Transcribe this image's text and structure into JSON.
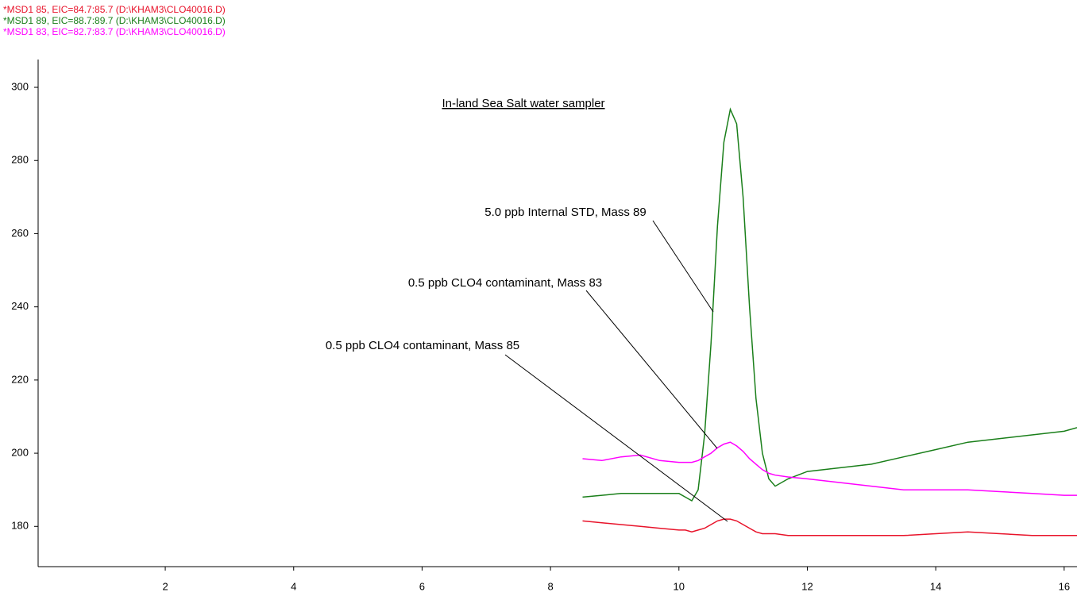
{
  "chart_data": {
    "type": "line",
    "title": "In-land Sea Salt water sampler",
    "x": [
      8.5,
      8.8,
      9.1,
      9.4,
      9.7,
      10.0,
      10.1,
      10.2,
      10.3,
      10.4,
      10.5,
      10.6,
      10.7,
      10.8,
      10.9,
      11.0,
      11.1,
      11.2,
      11.3,
      11.4,
      11.5,
      11.7,
      12.0,
      12.5,
      13.0,
      13.5,
      14.0,
      14.5,
      15.0,
      15.5,
      16.0,
      16.2
    ],
    "series": [
      {
        "name": "*MSD1 85, EIC=84.7:85.7 (D:\\KHAM3\\CLO40016.D)",
        "color": "#e8132a",
        "values": [
          181.5,
          181,
          180.5,
          180,
          179.5,
          179,
          179,
          178.5,
          179,
          179.5,
          180.5,
          181.5,
          182,
          182,
          181.5,
          180.5,
          179.5,
          178.5,
          178,
          178,
          178,
          177.5,
          177.5,
          177.5,
          177.5,
          177.5,
          178,
          178.5,
          178,
          177.5,
          177.5,
          177.5
        ]
      },
      {
        "name": "*MSD1 89, EIC=88.7:89.7 (D:\\KHAM3\\CLO40016.D)",
        "color": "#1a7f1a",
        "values": [
          188,
          188.5,
          189,
          189,
          189,
          189,
          188,
          187,
          190,
          205,
          230,
          262,
          285,
          294,
          290,
          270,
          240,
          215,
          200,
          193,
          191,
          193,
          195,
          196,
          197,
          199,
          201,
          203,
          204,
          205,
          206,
          207
        ]
      },
      {
        "name": "*MSD1 83, EIC=82.7:83.7 (D:\\KHAM3\\CLO40016.D)",
        "color": "#ff00ff",
        "values": [
          198.5,
          198,
          199,
          199.5,
          198,
          197.5,
          197.5,
          197.5,
          198,
          199,
          200,
          201.5,
          202.5,
          203,
          202,
          200.5,
          198.5,
          197,
          195.5,
          194.5,
          194,
          193.5,
          193,
          192,
          191,
          190,
          190,
          190,
          189.5,
          189,
          188.5,
          188.5
        ]
      }
    ],
    "annotations": [
      "0.5 ppb CLO4 contaminant, Mass 85",
      "5.0 ppb Internal STD, Mass 89",
      "0.5 ppb CLO4 contaminant, Mass 83"
    ],
    "xlim": [
      0.02,
      16.2
    ],
    "xticks": [
      2,
      4,
      6,
      8,
      10,
      12,
      14,
      16
    ],
    "ylim": [
      169,
      307.6
    ],
    "yticks": [
      180,
      200,
      220,
      240,
      260,
      280,
      300
    ]
  }
}
